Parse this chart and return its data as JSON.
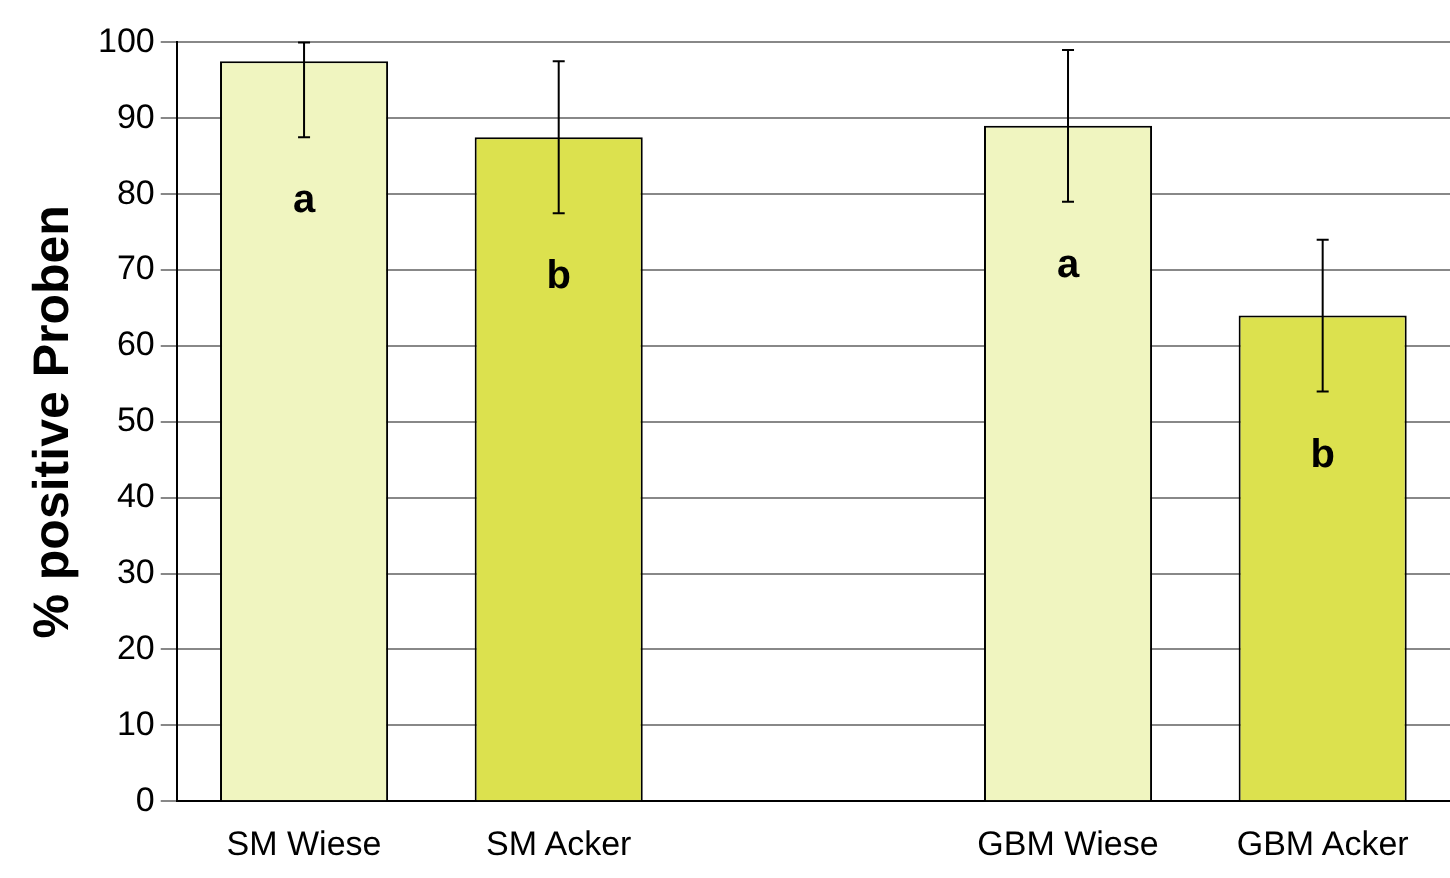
{
  "chart_data": {
    "type": "bar",
    "ylabel": "% positive Proben",
    "categories": [
      "SM Wiese",
      "SM Acker",
      null,
      "GBM Wiese",
      "GBM Acker"
    ],
    "values": [
      97.5,
      87.5,
      null,
      89,
      64
    ],
    "colors": [
      "#f0f5c0",
      "#dce14e",
      null,
      "#f0f5c0",
      "#dce14e"
    ],
    "errors": [
      [
        87.5,
        100
      ],
      [
        77.5,
        97.5
      ],
      null,
      [
        79,
        99
      ],
      [
        54,
        74
      ]
    ],
    "annotations": [
      "a",
      "b",
      "a",
      "b"
    ],
    "ylim": [
      0,
      100
    ],
    "yticks": [
      0,
      10,
      20,
      30,
      40,
      50,
      60,
      70,
      80,
      90,
      100
    ],
    "grid": "y",
    "legend": false
  }
}
